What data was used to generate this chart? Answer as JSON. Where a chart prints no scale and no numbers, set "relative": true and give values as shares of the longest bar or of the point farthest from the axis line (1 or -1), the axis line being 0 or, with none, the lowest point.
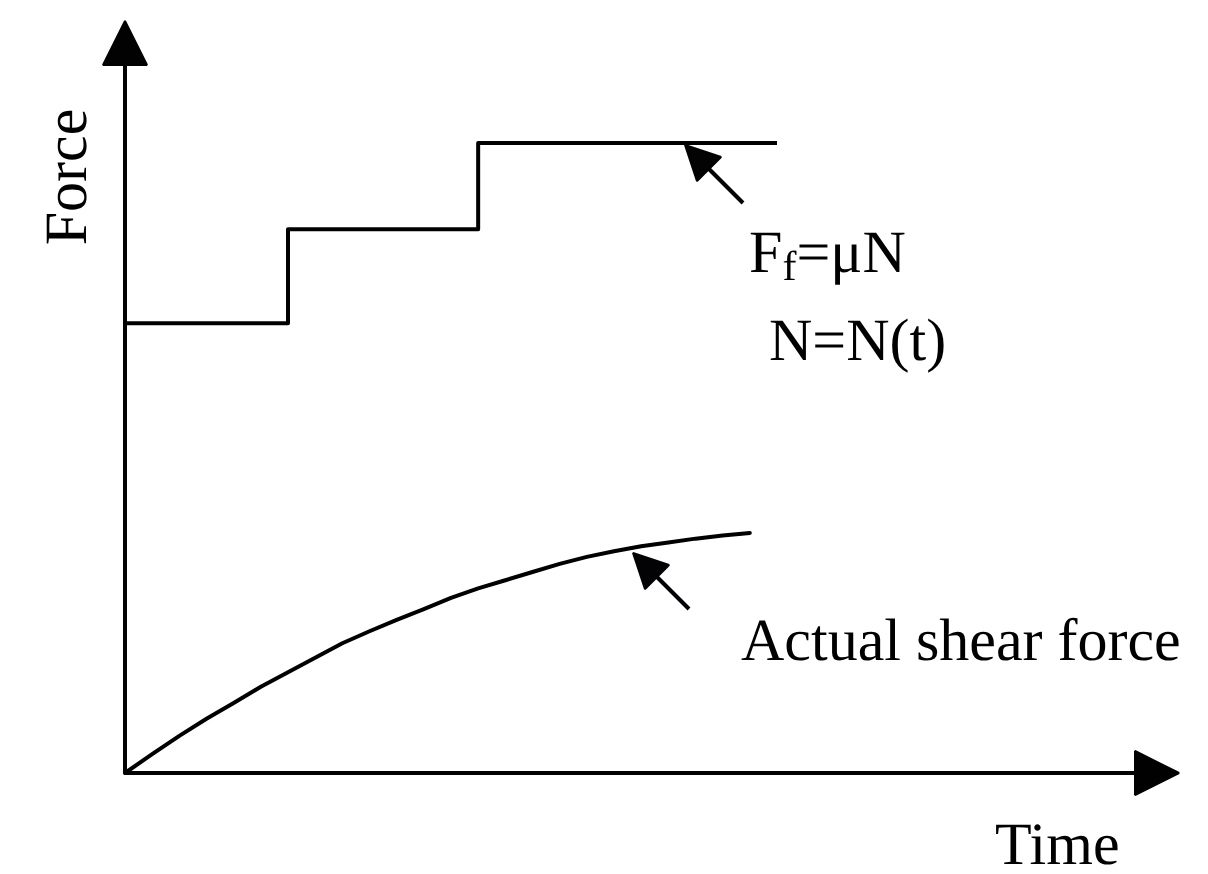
{
  "chart_data": {
    "type": "step",
    "relative": true,
    "xlabel": "Time",
    "ylabel": "Force",
    "categories": [
      null,
      null,
      null,
      null,
      null,
      null,
      null,
      null,
      null,
      null,
      null,
      null,
      null,
      null,
      null,
      null,
      null,
      null,
      null,
      null,
      null,
      null,
      null,
      null,
      null
    ],
    "series": [
      {
        "color": "#000000",
        "values": [
          0.714,
          0.714,
          0.714,
          0.714,
          0.714,
          0.714,
          0.863,
          0.863,
          0.863,
          0.863,
          0.863,
          0.863,
          0.863,
          1,
          1,
          1,
          1,
          1,
          1,
          1,
          1,
          1,
          1,
          1,
          1
        ]
      },
      {
        "type": "line",
        "color": "#000000",
        "values": [
          0,
          0.03,
          0.059,
          0.086,
          0.111,
          0.137,
          0.16,
          0.183,
          0.206,
          0.225,
          0.243,
          0.26,
          0.278,
          0.293,
          0.306,
          0.319,
          0.332,
          0.343,
          0.352,
          0.36,
          0.366,
          0.372,
          0.377,
          0.381,
          null
        ]
      }
    ],
    "annotations": [
      "F$_{f}$=μN",
      "N=N(t)",
      "Actual shear force"
    ]
  }
}
